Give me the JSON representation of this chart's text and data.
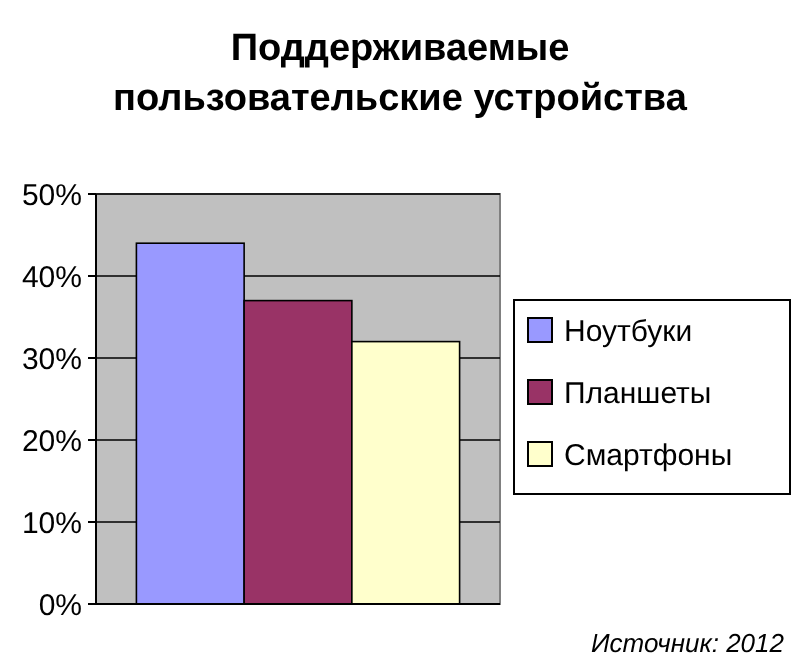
{
  "chart_data": {
    "type": "bar",
    "title": "Поддерживаемые\nпользовательские устройства",
    "categories": [
      null
    ],
    "series": [
      {
        "name": "Ноутбуки",
        "color": "#9999ff",
        "values": [
          44
        ]
      },
      {
        "name": "Планшеты",
        "color": "#993366",
        "values": [
          37
        ]
      },
      {
        "name": "Смартфоны",
        "color": "#ffffcc",
        "values": [
          32
        ]
      }
    ],
    "ylim": [
      0,
      50
    ],
    "yticks": [
      {
        "value": 0,
        "label": "0%"
      },
      {
        "value": 10,
        "label": "10%"
      },
      {
        "value": 20,
        "label": "20%"
      },
      {
        "value": 30,
        "label": "30%"
      },
      {
        "value": 40,
        "label": "40%"
      },
      {
        "value": 50,
        "label": "50%"
      }
    ],
    "grid": "y",
    "legend": "right",
    "annotations": [
      "Источник: 2012"
    ]
  }
}
